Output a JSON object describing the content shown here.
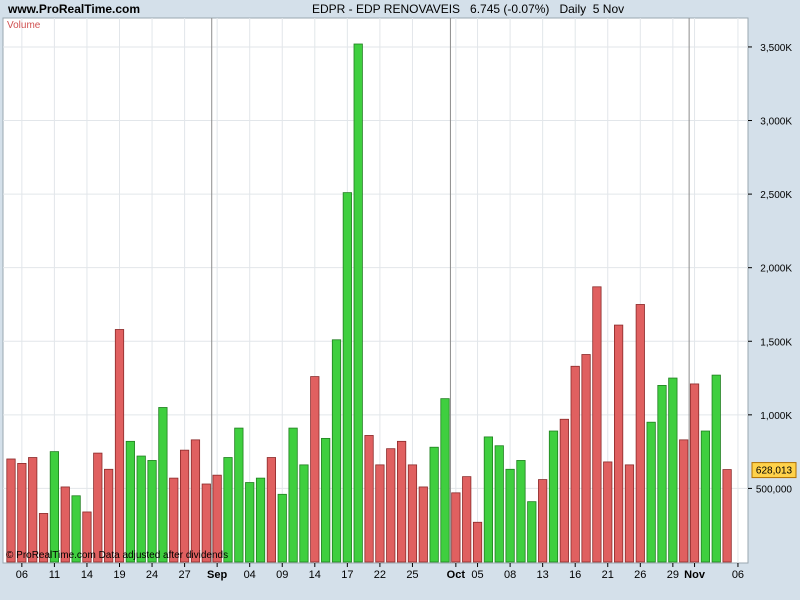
{
  "header": {
    "site": "www.ProRealTime.com",
    "symbol": "EDPR - EDP RENOVAVEIS",
    "price": "6.745 (-0.07%)",
    "period": "Daily  5 Nov"
  },
  "indicator_label": "Volume",
  "footer_note": "© ProRealTime.com Data adjusted after dividends",
  "last_value": "628,013",
  "colors": {
    "up": "#3fcf3f",
    "down": "#e06060",
    "last_value_bg": "#ffd24a"
  },
  "chart_data": {
    "type": "bar",
    "title": "Volume",
    "ylim": [
      0,
      3700000
    ],
    "yticks": [
      500000,
      1000000,
      1500000,
      2000000,
      2500000,
      3000000,
      3500000
    ],
    "ytick_labels": [
      "500,000",
      "1,000K",
      "1,500K",
      "2,000K",
      "2,500K",
      "3,000K",
      "3,500K"
    ],
    "grid": true,
    "x_tick_labels": [
      {
        "label": "06",
        "bar": 1,
        "bold": false
      },
      {
        "label": "11",
        "bar": 4,
        "bold": false
      },
      {
        "label": "14",
        "bar": 7,
        "bold": false
      },
      {
        "label": "19",
        "bar": 10,
        "bold": false
      },
      {
        "label": "24",
        "bar": 13,
        "bold": false
      },
      {
        "label": "27",
        "bar": 16,
        "bold": false
      },
      {
        "label": "Sep",
        "bar": 19,
        "bold": true
      },
      {
        "label": "04",
        "bar": 22,
        "bold": false
      },
      {
        "label": "09",
        "bar": 25,
        "bold": false
      },
      {
        "label": "14",
        "bar": 28,
        "bold": false
      },
      {
        "label": "17",
        "bar": 31,
        "bold": false
      },
      {
        "label": "22",
        "bar": 34,
        "bold": false
      },
      {
        "label": "25",
        "bar": 37,
        "bold": false
      },
      {
        "label": "Oct",
        "bar": 41,
        "bold": true
      },
      {
        "label": "05",
        "bar": 43,
        "bold": false
      },
      {
        "label": "08",
        "bar": 46,
        "bold": false
      },
      {
        "label": "13",
        "bar": 49,
        "bold": false
      },
      {
        "label": "16",
        "bar": 52,
        "bold": false
      },
      {
        "label": "21",
        "bar": 55,
        "bold": false
      },
      {
        "label": "26",
        "bar": 58,
        "bold": false
      },
      {
        "label": "29",
        "bar": 61,
        "bold": false
      },
      {
        "label": "Nov",
        "bar": 63,
        "bold": true
      },
      {
        "label": "06",
        "bar": 67,
        "bold": false
      }
    ],
    "month_separators_after_bar": [
      18.5,
      40.5,
      62.5
    ],
    "series": [
      {
        "values": [
          700000,
          670000,
          710000,
          330000,
          750000,
          510000,
          450000,
          340000,
          740000,
          630000,
          1580000,
          820000,
          720000,
          690000,
          1050000,
          570000,
          760000,
          830000,
          530000,
          590000,
          710000,
          910000,
          540000,
          570000,
          710000,
          460000,
          910000,
          660000,
          1260000,
          840000,
          1510000,
          2510000,
          3520000,
          860000,
          660000,
          770000,
          820000,
          660000,
          510000,
          780000,
          1110000,
          470000,
          580000,
          270000,
          850000,
          790000,
          630000,
          690000,
          410000,
          560000,
          890000,
          970000,
          1330000,
          1410000,
          1870000,
          680000,
          1610000,
          660000,
          1750000,
          950000,
          1200000,
          1250000,
          830000,
          1210000,
          890000,
          1270000,
          628013
        ],
        "directions": [
          "down",
          "down",
          "down",
          "down",
          "up",
          "down",
          "up",
          "down",
          "down",
          "down",
          "down",
          "up",
          "up",
          "up",
          "up",
          "down",
          "down",
          "down",
          "down",
          "down",
          "up",
          "up",
          "up",
          "up",
          "down",
          "up",
          "up",
          "up",
          "down",
          "up",
          "up",
          "up",
          "up",
          "down",
          "down",
          "down",
          "down",
          "down",
          "down",
          "up",
          "up",
          "down",
          "down",
          "down",
          "up",
          "up",
          "up",
          "up",
          "up",
          "down",
          "up",
          "down",
          "down",
          "down",
          "down",
          "down",
          "down",
          "down",
          "down",
          "up",
          "up",
          "up",
          "down",
          "down",
          "up",
          "up",
          "down"
        ]
      }
    ]
  }
}
